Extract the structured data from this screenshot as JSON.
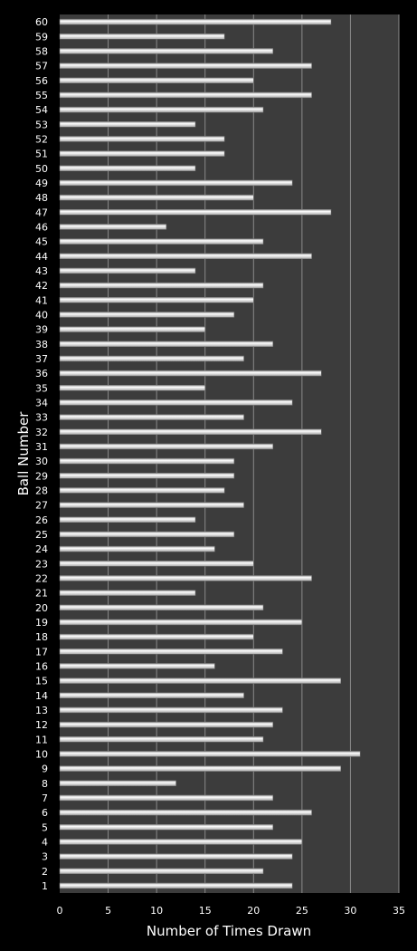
{
  "chart_data": {
    "type": "bar",
    "orientation": "horizontal",
    "xlabel": "Number of Times Drawn",
    "ylabel": "Ball Number",
    "xlim": [
      0,
      35
    ],
    "xticks": [
      0,
      5,
      10,
      15,
      20,
      25,
      30,
      35
    ],
    "grid": true,
    "categories": [
      "1",
      "2",
      "3",
      "4",
      "5",
      "6",
      "7",
      "8",
      "9",
      "10",
      "11",
      "12",
      "13",
      "14",
      "15",
      "16",
      "17",
      "18",
      "19",
      "20",
      "21",
      "22",
      "23",
      "24",
      "25",
      "26",
      "27",
      "28",
      "29",
      "30",
      "31",
      "32",
      "33",
      "34",
      "35",
      "36",
      "37",
      "38",
      "39",
      "40",
      "41",
      "42",
      "43",
      "44",
      "45",
      "46",
      "47",
      "48",
      "49",
      "50",
      "51",
      "52",
      "53",
      "54",
      "55",
      "56",
      "57",
      "58",
      "59",
      "60"
    ],
    "values": [
      24,
      21,
      24,
      25,
      22,
      26,
      22,
      12,
      29,
      31,
      21,
      22,
      23,
      19,
      29,
      16,
      23,
      20,
      25,
      21,
      14,
      26,
      20,
      16,
      18,
      14,
      19,
      17,
      18,
      18,
      22,
      27,
      19,
      24,
      15,
      27,
      19,
      22,
      15,
      18,
      20,
      21,
      14,
      26,
      21,
      11,
      28,
      20,
      24,
      14,
      17,
      17,
      14,
      21,
      26,
      20,
      26,
      22,
      17,
      28
    ],
    "colors": {
      "background": "#000000",
      "plot_area": "#3c3c3c",
      "bar": "#d9d9d9",
      "gridline": "#8a8a8a",
      "text": "#ffffff"
    }
  }
}
